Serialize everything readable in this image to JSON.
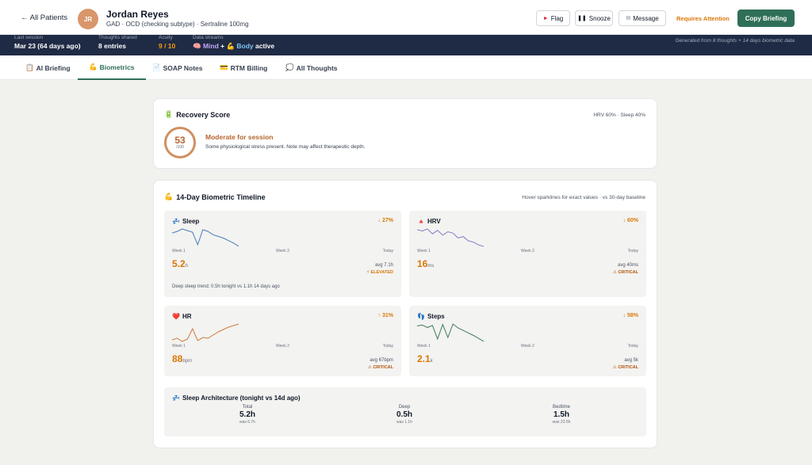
{
  "header": {
    "back_label": "← All Patients",
    "avatar_initials": "JR",
    "patient_name": "Jordan Reyes",
    "diagnosis": "GAD · OCD (checking subtype) · Sertraline 100mg",
    "flag_label": "Flag",
    "snooze_label": "Snooze",
    "message_label": "Message",
    "status_label": "Requires Attention",
    "copy_label": "Copy Briefing",
    "flag_icon": "flag-icon",
    "snooze_icon": "pause-icon",
    "message_icon": "message-icon",
    "status_color": "#d97706",
    "accent_color": "#2f6f58"
  },
  "stats": {
    "last_session_label": "Last session",
    "last_session_value": "Mar 23 (64 days ago)",
    "thoughts_label": "Thoughts shared",
    "thoughts_value": "8 entries",
    "acuity_label": "Acuity",
    "acuity_value": "9 / 10",
    "streams_label": "Data streams",
    "streams_mind": "🧠 Mind",
    "streams_plus": " + ",
    "streams_body": "💪 Body",
    "streams_status": " active",
    "generated_note": "Generated from 8 thoughts + 14 days biometric data"
  },
  "tabs": [
    {
      "icon": "📋",
      "label": "AI Briefing"
    },
    {
      "icon": "💪",
      "label": "Biometrics"
    },
    {
      "icon": "📄",
      "label": "SOAP Notes"
    },
    {
      "icon": "💳",
      "label": "RTM Billing"
    },
    {
      "icon": "💭",
      "label": "All Thoughts"
    }
  ],
  "active_tab": "Biometrics",
  "recovery": {
    "icon": "🔋",
    "title": "Recovery Score",
    "weights": "HRV 60% · Sleep 40%",
    "score": "53",
    "score_denominator": "/100",
    "headline": "Moderate for session",
    "description": "Some physiological stress present. Note may affect therapeutic depth."
  },
  "timeline": {
    "icon": "💪",
    "title": "14-Day Biometric Timeline",
    "hint": "Hover sparklines for exact values · vs 30-day baseline",
    "axis_start": "Week 1",
    "axis_mid": "Week 2",
    "axis_end": "Today",
    "metrics": [
      {
        "icon": "💤",
        "name": "Sleep",
        "delta": "↓ 27%",
        "value": "5.2",
        "unit": "h",
        "avg": "avg 7.1h",
        "flag": "⚡ ELEVATED",
        "flag_color": "#d97706",
        "line_color": "#4a7ab8",
        "footnote": "Deep sleep trend: 0.5h tonight vs 1.1h 14 days ago",
        "series": [
          6.8,
          7.0,
          7.3,
          7.1,
          6.9,
          5.4,
          7.2,
          7.0,
          6.6,
          6.4,
          6.2,
          5.9,
          5.6,
          5.2
        ]
      },
      {
        "icon": "🔺",
        "name": "HRV",
        "delta": "↓ 60%",
        "value": "16",
        "unit": "ms",
        "avg": "avg 40ms",
        "flag": "⚠ CRITICAL",
        "flag_color": "#b45309",
        "line_color": "#8a76c9",
        "footnote": "",
        "series": [
          40,
          38,
          41,
          34,
          39,
          32,
          37,
          35,
          28,
          30,
          24,
          22,
          18,
          16
        ]
      },
      {
        "icon": "❤️",
        "name": "HR",
        "delta": "↑ 31%",
        "value": "88",
        "unit": "bpm",
        "avg": "avg 67bpm",
        "flag": "⚠ CRITICAL",
        "flag_color": "#b45309",
        "line_color": "#d07a3a",
        "footnote": "",
        "series": [
          68,
          70,
          66,
          69,
          82,
          67,
          71,
          70,
          74,
          78,
          81,
          84,
          86,
          88
        ]
      },
      {
        "icon": "👣",
        "name": "Steps",
        "delta": "↓ 58%",
        "value": "2.1",
        "unit": "k",
        "avg": "avg 5k",
        "flag": "⚠ CRITICAL",
        "flag_color": "#b45309",
        "line_color": "#3f7a56",
        "footnote": "",
        "series": [
          5.2,
          5.4,
          4.9,
          5.3,
          2.6,
          5.5,
          2.9,
          5.6,
          4.8,
          4.3,
          3.8,
          3.3,
          2.7,
          2.1
        ]
      }
    ]
  },
  "sleep_arch": {
    "icon": "💤",
    "title": "Sleep Architecture (tonight vs 14d ago)",
    "cols": [
      {
        "label": "Total",
        "value": "5.2h",
        "was": "was 6.7h"
      },
      {
        "label": "Deep",
        "value": "0.5h",
        "was": "was 1.1h"
      },
      {
        "label": "Bedtime",
        "value": "1.5h",
        "was": "was 23.5h"
      }
    ]
  }
}
